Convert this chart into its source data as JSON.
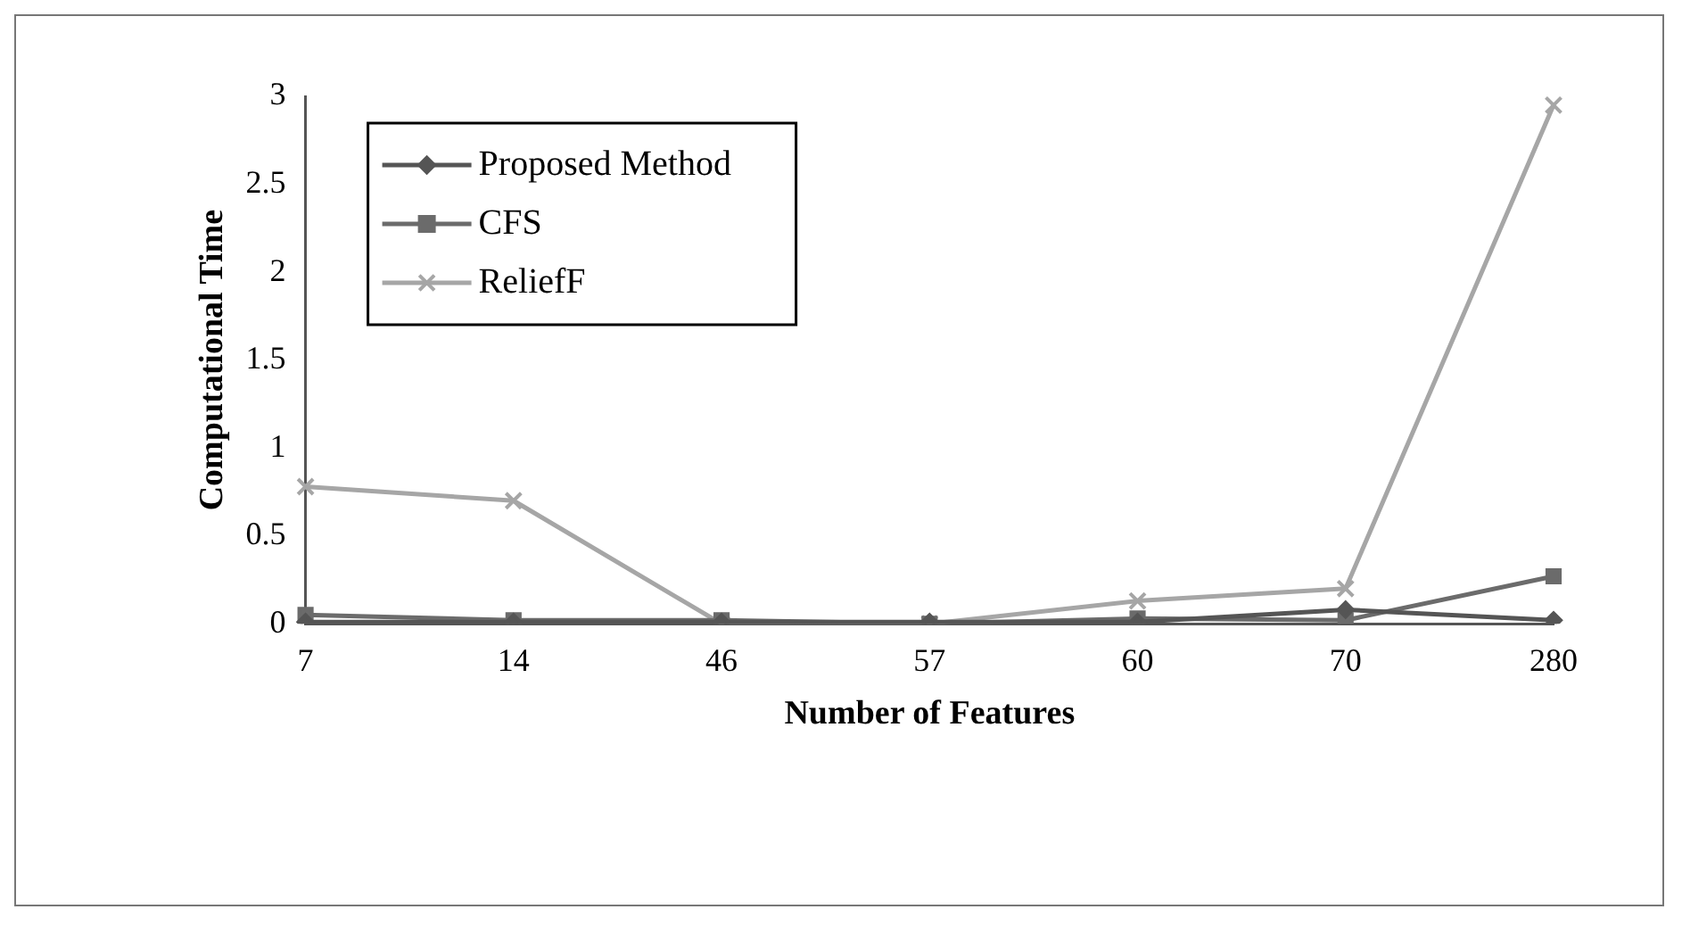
{
  "chart_data": {
    "type": "line",
    "xlabel": "Number of Features",
    "ylabel": "Computational Time",
    "categories": [
      "7",
      "14",
      "46",
      "57",
      "60",
      "70",
      "280"
    ],
    "series": [
      {
        "name": "Proposed Method",
        "color": "#555555",
        "marker": "diamond",
        "values": [
          0.01,
          0.01,
          0.01,
          0.01,
          0.01,
          0.08,
          0.02
        ]
      },
      {
        "name": "CFS",
        "color": "#6b6b6b",
        "marker": "square",
        "values": [
          0.05,
          0.02,
          0.02,
          0.0,
          0.03,
          0.02,
          0.27
        ]
      },
      {
        "name": "ReliefF",
        "color": "#a6a6a6",
        "marker": "cross",
        "values": [
          0.78,
          0.7,
          0.0,
          0.0,
          0.13,
          0.2,
          2.95
        ]
      }
    ],
    "ylim": [
      0,
      3
    ],
    "yticks": [
      0,
      0.5,
      1,
      1.5,
      2,
      2.5,
      3
    ],
    "grid": false,
    "legend": "top left"
  }
}
